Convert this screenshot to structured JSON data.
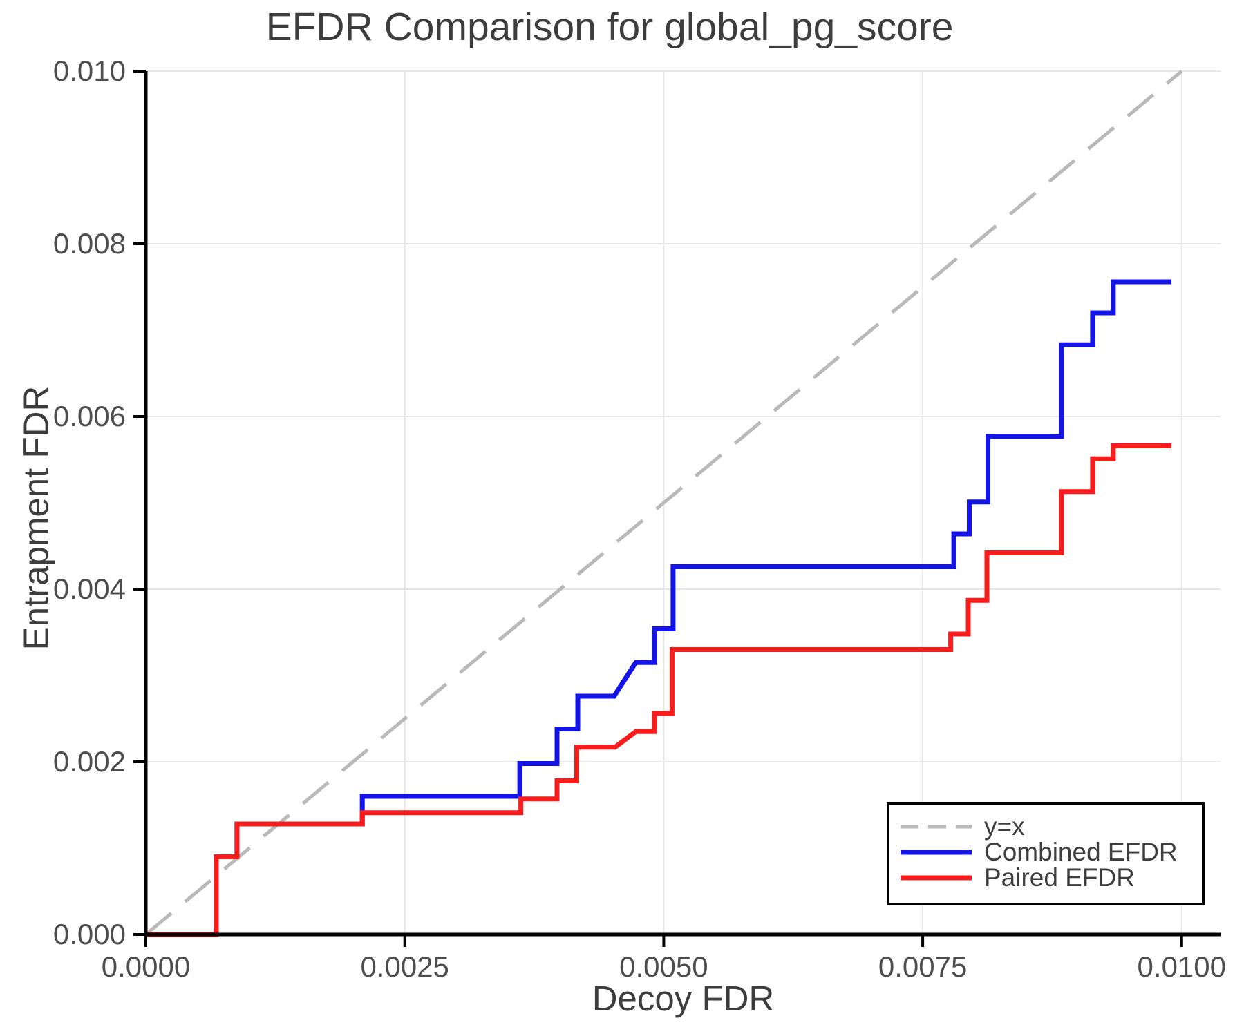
{
  "chart_data": {
    "type": "line",
    "title": "EFDR Comparison for global_pg_score",
    "xlabel": "Decoy FDR",
    "ylabel": "Entrapment FDR",
    "xlim": [
      0,
      0.010375
    ],
    "ylim": [
      0,
      0.01
    ],
    "grid": true,
    "xticks": {
      "values": [
        0,
        0.0025,
        0.005,
        0.0075,
        0.01
      ],
      "labels": [
        "0.0000",
        "0.0025",
        "0.0050",
        "0.0075",
        "0.0100"
      ]
    },
    "yticks": {
      "values": [
        0,
        0.002,
        0.004,
        0.006,
        0.008,
        0.01
      ],
      "labels": [
        "0.000",
        "0.002",
        "0.004",
        "0.006",
        "0.008",
        "0.010"
      ]
    },
    "reference_line": {
      "label": "y=x",
      "from": [
        0,
        0
      ],
      "to": [
        0.01,
        0.01
      ],
      "color": "#b9b9b9",
      "dashed": true
    },
    "series": [
      {
        "name": "Combined EFDR",
        "color": "#1414e8",
        "points": [
          [
            0,
            0
          ],
          [
            0.00068,
            0
          ],
          [
            0.00068,
            0.0009
          ],
          [
            0.00088,
            0.0009
          ],
          [
            0.00088,
            0.00128
          ],
          [
            0.00209,
            0.00128
          ],
          [
            0.00209,
            0.0016
          ],
          [
            0.00361,
            0.0016
          ],
          [
            0.00361,
            0.00198
          ],
          [
            0.00397,
            0.00198
          ],
          [
            0.00397,
            0.00238
          ],
          [
            0.00417,
            0.00238
          ],
          [
            0.00417,
            0.00276
          ],
          [
            0.00452,
            0.00276
          ],
          [
            0.00473,
            0.00315
          ],
          [
            0.00491,
            0.00315
          ],
          [
            0.00491,
            0.00354
          ],
          [
            0.00509,
            0.00354
          ],
          [
            0.00509,
            0.00426
          ],
          [
            0.0078,
            0.00426
          ],
          [
            0.0078,
            0.00464
          ],
          [
            0.00795,
            0.00464
          ],
          [
            0.00795,
            0.00501
          ],
          [
            0.00813,
            0.00501
          ],
          [
            0.00813,
            0.00577
          ],
          [
            0.00884,
            0.00577
          ],
          [
            0.00884,
            0.00683
          ],
          [
            0.00914,
            0.00683
          ],
          [
            0.00914,
            0.0072
          ],
          [
            0.00934,
            0.0072
          ],
          [
            0.00934,
            0.00756
          ],
          [
            0.0099,
            0.00756
          ]
        ]
      },
      {
        "name": "Paired EFDR",
        "color": "#f81c1c",
        "points": [
          [
            0,
            0
          ],
          [
            0.00068,
            0
          ],
          [
            0.00068,
            0.0009
          ],
          [
            0.00088,
            0.0009
          ],
          [
            0.00088,
            0.00128
          ],
          [
            0.00209,
            0.00128
          ],
          [
            0.00209,
            0.00141
          ],
          [
            0.00362,
            0.00141
          ],
          [
            0.00362,
            0.00157
          ],
          [
            0.00397,
            0.00157
          ],
          [
            0.00397,
            0.00178
          ],
          [
            0.00416,
            0.00178
          ],
          [
            0.00416,
            0.00217
          ],
          [
            0.00453,
            0.00217
          ],
          [
            0.00473,
            0.00235
          ],
          [
            0.00491,
            0.00235
          ],
          [
            0.00491,
            0.00256
          ],
          [
            0.00508,
            0.00256
          ],
          [
            0.00508,
            0.0033
          ],
          [
            0.00777,
            0.0033
          ],
          [
            0.00777,
            0.00348
          ],
          [
            0.00794,
            0.00348
          ],
          [
            0.00794,
            0.00387
          ],
          [
            0.00812,
            0.00387
          ],
          [
            0.00812,
            0.00442
          ],
          [
            0.00884,
            0.00442
          ],
          [
            0.00884,
            0.00513
          ],
          [
            0.00914,
            0.00513
          ],
          [
            0.00914,
            0.00551
          ],
          [
            0.00934,
            0.00551
          ],
          [
            0.00934,
            0.00566
          ],
          [
            0.0099,
            0.00566
          ]
        ]
      }
    ],
    "legend": {
      "position": "bottom-right",
      "items": [
        {
          "label": "y=x",
          "color": "#b9b9b9",
          "dash": true
        },
        {
          "label": "Combined EFDR",
          "color": "#1414e8",
          "dash": false
        },
        {
          "label": "Paired EFDR",
          "color": "#f81c1c",
          "dash": false
        }
      ]
    },
    "style": {
      "grid_color": "#e7e7e7",
      "spine_color": "#000000",
      "title_color": "#3d3d3d",
      "tick_label_color": "#4d4d4d"
    }
  }
}
